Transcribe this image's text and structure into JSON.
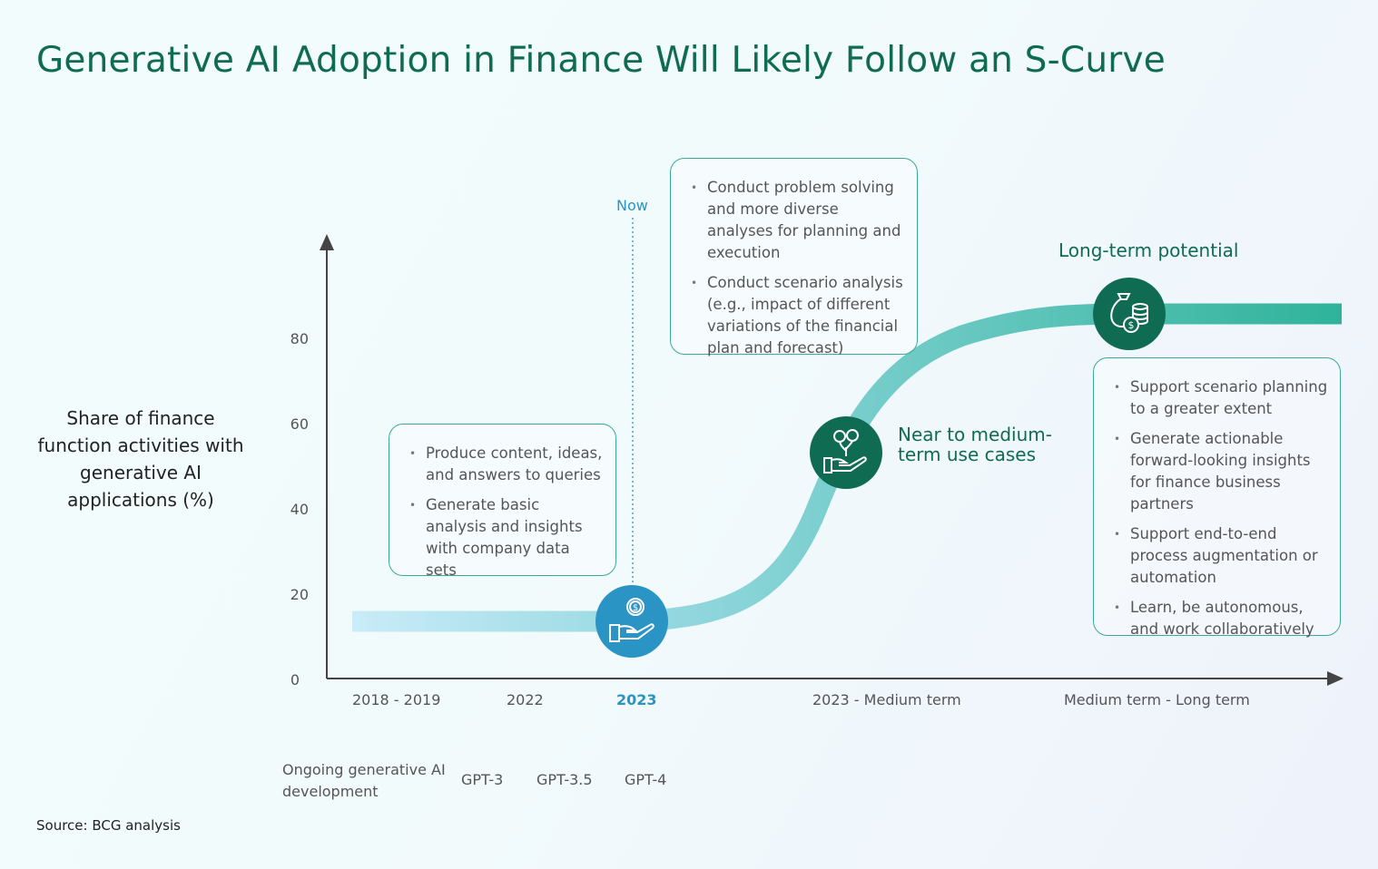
{
  "title": "Generative AI Adoption in Finance Will Likely Follow an S-Curve",
  "y_axis": {
    "label": "Share of finance function activities with generative AI applications (%)",
    "ticks": [
      "0",
      "20",
      "40",
      "60",
      "80"
    ]
  },
  "x_axis": {
    "ticks": [
      "2018 - 2019",
      "2022",
      "2023",
      "2023 - Medium term",
      "Medium term - Long term"
    ],
    "highlight": "2023"
  },
  "now_label": "Now",
  "boxes": {
    "current": [
      "Produce content, ideas, and answers to queries",
      "Generate basic analysis and insights with company data sets"
    ],
    "near": [
      "Conduct problem solving and more diverse analyses for planning and execution",
      "Conduct scenario analysis (e.g., impact of different variations of the financial plan and forecast)"
    ],
    "long": [
      "Support scenario planning to a greater extent",
      "Generate actionable forward-looking insights for finance business partners",
      "Support end-to-end process augmentation or automation",
      "Learn, be autonomous, and work collaboratively"
    ]
  },
  "stages": {
    "near": "Near to medium-term use cases",
    "long": "Long-term potential"
  },
  "icons": {
    "current": "hand-coin-icon",
    "near": "hand-plant-coins-icon",
    "long": "money-bag-coins-icon"
  },
  "development": {
    "label": "Ongoing generative AI development",
    "models": [
      "GPT-3",
      "GPT-3.5",
      "GPT-4"
    ]
  },
  "source": "Source: BCG analysis",
  "colors": {
    "title": "#0f6b52",
    "now": "#2a94c4",
    "curve_start": "#c9ecf8",
    "curve_end": "#2fb39a",
    "dark_circle": "#0f6b52",
    "blue_circle": "#2a94c4",
    "box_border": "#3aa99a"
  }
}
